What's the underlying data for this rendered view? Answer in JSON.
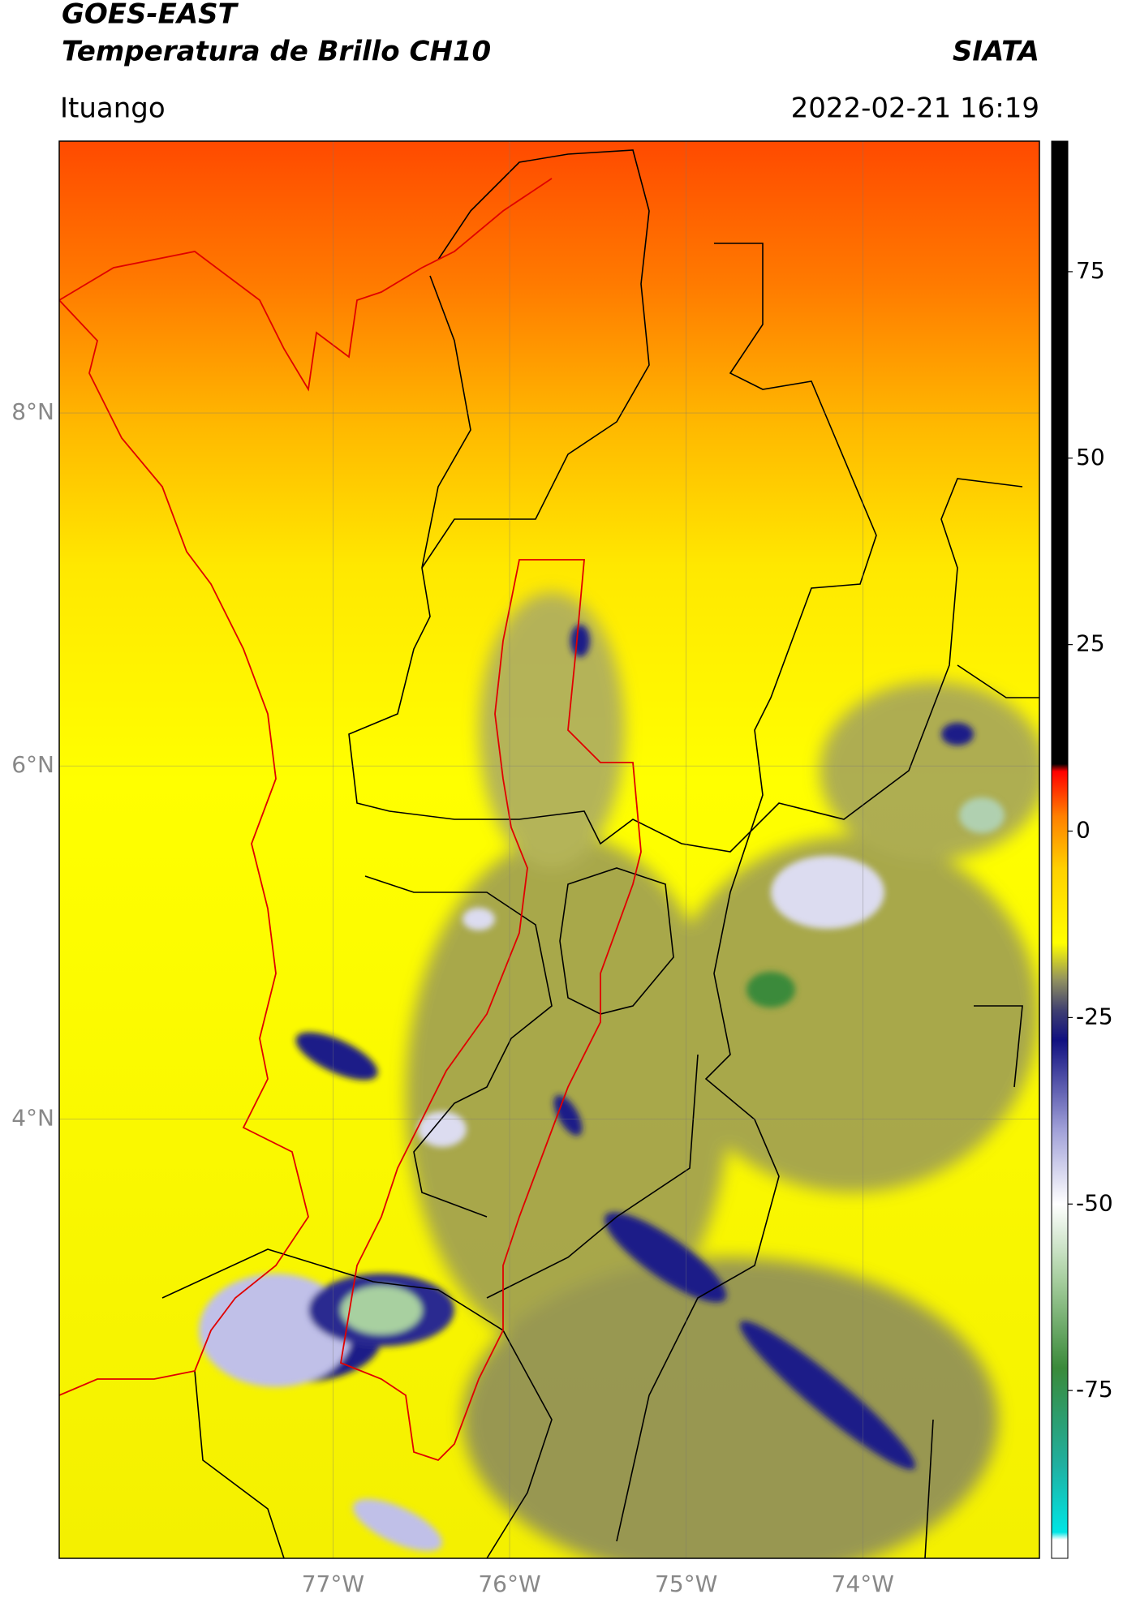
{
  "chart_data": {
    "type": "map",
    "title": "GOES-EAST",
    "subtitle": "Temperatura de Brillo CH10",
    "source": "SIATA",
    "location": "Ituango",
    "datetime": "2022-02-21 16:19",
    "xlim": [
      -78.55,
      -73.0
    ],
    "ylim": [
      1.51,
      9.54
    ],
    "xticks": [
      {
        "value": -77,
        "label": "77°W"
      },
      {
        "value": -76,
        "label": "76°W"
      },
      {
        "value": -75,
        "label": "75°W"
      },
      {
        "value": -74,
        "label": "74°W"
      }
    ],
    "yticks": [
      {
        "value": 4,
        "label": "4°N"
      },
      {
        "value": 6,
        "label": "6°N"
      },
      {
        "value": 8,
        "label": "8°N"
      }
    ],
    "grid": true,
    "clim": [
      -97.5,
      92.5
    ],
    "cticks": [
      -75,
      -50,
      -25,
      0,
      25,
      50,
      75
    ],
    "colormap": [
      [
        -97.5,
        "#ffffff"
      ],
      [
        -95,
        "#ffffff"
      ],
      [
        -94,
        "#00e5e5"
      ],
      [
        -85,
        "#20b0a0"
      ],
      [
        -72,
        "#3a8a3a"
      ],
      [
        -60,
        "#a8cfa0"
      ],
      [
        -50,
        "#ffffff"
      ],
      [
        -40,
        "#a0a0d8"
      ],
      [
        -28,
        "#101080"
      ],
      [
        -24,
        "#404070"
      ],
      [
        -20,
        "#909060"
      ],
      [
        -15,
        "#ffff00"
      ],
      [
        -5,
        "#ffd000"
      ],
      [
        2,
        "#ff8000"
      ],
      [
        8,
        "#ff0000"
      ],
      [
        9,
        "#000000"
      ],
      [
        92.5,
        "#000000"
      ]
    ]
  }
}
